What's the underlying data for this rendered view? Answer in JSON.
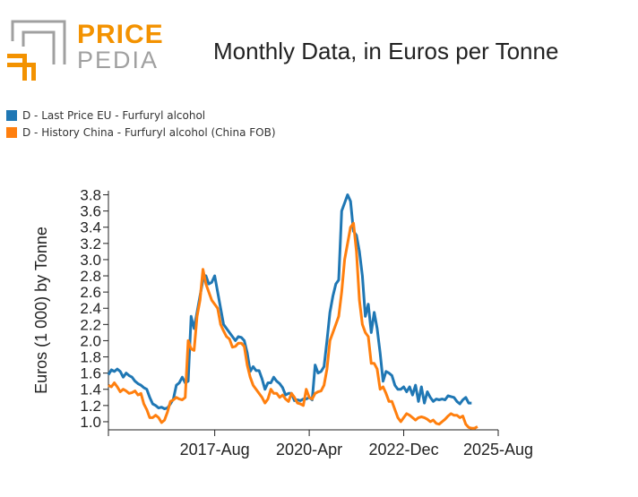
{
  "header": {
    "logo_line1": "PRICE",
    "logo_line2": "PEDIA",
    "title": "Monthly Data, in Euros per Tonne"
  },
  "colors": {
    "eu": "#1f77b4",
    "china": "#ff7f0e",
    "logo_orange": "#f39200",
    "logo_gray": "#a0a0a0"
  },
  "legend": [
    {
      "label": "D - Last Price EU - Furfuryl alcohol",
      "color": "#1f77b4"
    },
    {
      "label": "D - History China - Furfuryl alcohol (China FOB)",
      "color": "#ff7f0e"
    }
  ],
  "chart_data": {
    "type": "line",
    "ylabel": "Euros (1 000) by Tonne",
    "xlabel": "",
    "x_tick_labels": [
      "2017-Aug",
      "2020-Apr",
      "2022-Dec",
      "2025-Aug"
    ],
    "x_ticks": [
      "2014-Aug",
      "2017-Aug",
      "2020-Apr",
      "2022-Dec",
      "2025-Aug"
    ],
    "y_ticks": [
      1.0,
      1.2,
      1.4,
      1.6,
      1.8,
      2.0,
      2.2,
      2.4,
      2.6,
      2.8,
      3.0,
      3.2,
      3.4,
      3.6,
      3.8
    ],
    "ylim": [
      0.9,
      3.85
    ],
    "xlim": [
      "2014-Aug",
      "2025-Aug"
    ],
    "series": [
      {
        "name": "D - Last Price EU - Furfuryl alcohol",
        "color": "#1f77b4",
        "points": [
          [
            "2014-Aug",
            1.58
          ],
          [
            "2014-Sep",
            1.64
          ],
          [
            "2014-Oct",
            1.62
          ],
          [
            "2014-Nov",
            1.65
          ],
          [
            "2014-Dec",
            1.62
          ],
          [
            "2015-Jan",
            1.55
          ],
          [
            "2015-Feb",
            1.6
          ],
          [
            "2015-Mar",
            1.57
          ],
          [
            "2015-Apr",
            1.55
          ],
          [
            "2015-May",
            1.5
          ],
          [
            "2015-Jun",
            1.47
          ],
          [
            "2015-Jul",
            1.45
          ],
          [
            "2015-Aug",
            1.42
          ],
          [
            "2015-Sep",
            1.4
          ],
          [
            "2015-Oct",
            1.3
          ],
          [
            "2015-Nov",
            1.22
          ],
          [
            "2015-Dec",
            1.2
          ],
          [
            "2016-Jan",
            1.17
          ],
          [
            "2016-Feb",
            1.18
          ],
          [
            "2016-Mar",
            1.16
          ],
          [
            "2016-Apr",
            1.17
          ],
          [
            "2016-May",
            1.22
          ],
          [
            "2016-Jun",
            1.28
          ],
          [
            "2016-Jul",
            1.45
          ],
          [
            "2016-Aug",
            1.48
          ],
          [
            "2016-Sep",
            1.55
          ],
          [
            "2016-Oct",
            1.48
          ],
          [
            "2016-Nov",
            1.5
          ],
          [
            "2016-Dec",
            2.3
          ],
          [
            "2017-Jan",
            2.15
          ],
          [
            "2017-Feb",
            2.35
          ],
          [
            "2017-Mar",
            2.55
          ],
          [
            "2017-Apr",
            2.75
          ],
          [
            "2017-May",
            2.8
          ],
          [
            "2017-Jun",
            2.7
          ],
          [
            "2017-Jul",
            2.72
          ],
          [
            "2017-Aug",
            2.8
          ],
          [
            "2017-Sep",
            2.6
          ],
          [
            "2017-Oct",
            2.4
          ],
          [
            "2017-Nov",
            2.2
          ],
          [
            "2017-Dec",
            2.15
          ],
          [
            "2018-Jan",
            2.1
          ],
          [
            "2018-Feb",
            2.05
          ],
          [
            "2018-Mar",
            2.0
          ],
          [
            "2018-Apr",
            2.05
          ],
          [
            "2018-May",
            2.04
          ],
          [
            "2018-Jun",
            2.0
          ],
          [
            "2018-Jul",
            1.85
          ],
          [
            "2018-Aug",
            1.62
          ],
          [
            "2018-Sep",
            1.68
          ],
          [
            "2018-Oct",
            1.63
          ],
          [
            "2018-Nov",
            1.63
          ],
          [
            "2018-Dec",
            1.53
          ],
          [
            "2019-Jan",
            1.4
          ],
          [
            "2019-Feb",
            1.48
          ],
          [
            "2019-Mar",
            1.48
          ],
          [
            "2019-Apr",
            1.55
          ],
          [
            "2019-May",
            1.5
          ],
          [
            "2019-Jun",
            1.47
          ],
          [
            "2019-Jul",
            1.42
          ],
          [
            "2019-Aug",
            1.33
          ],
          [
            "2019-Sep",
            1.35
          ],
          [
            "2019-Oct",
            1.35
          ],
          [
            "2019-Nov",
            1.26
          ],
          [
            "2019-Dec",
            1.27
          ],
          [
            "2020-Jan",
            1.26
          ],
          [
            "2020-Feb",
            1.28
          ],
          [
            "2020-Mar",
            1.28
          ],
          [
            "2020-Apr",
            1.3
          ],
          [
            "2020-May",
            1.27
          ],
          [
            "2020-Jun",
            1.7
          ],
          [
            "2020-Jul",
            1.6
          ],
          [
            "2020-Aug",
            1.62
          ],
          [
            "2020-Sep",
            1.68
          ],
          [
            "2020-Oct",
            2.0
          ],
          [
            "2020-Nov",
            2.35
          ],
          [
            "2020-Dec",
            2.55
          ],
          [
            "2021-Jan",
            2.7
          ],
          [
            "2021-Feb",
            2.75
          ],
          [
            "2021-Mar",
            3.6
          ],
          [
            "2021-Apr",
            3.7
          ],
          [
            "2021-May",
            3.8
          ],
          [
            "2021-Jun",
            3.72
          ],
          [
            "2021-Jul",
            3.35
          ],
          [
            "2021-Aug",
            3.3
          ],
          [
            "2021-Sep",
            3.1
          ],
          [
            "2021-Oct",
            2.8
          ],
          [
            "2021-Nov",
            2.3
          ],
          [
            "2021-Dec",
            2.45
          ],
          [
            "2022-Jan",
            2.1
          ],
          [
            "2022-Feb",
            2.35
          ],
          [
            "2022-Mar",
            2.15
          ],
          [
            "2022-Apr",
            1.85
          ],
          [
            "2022-May",
            1.5
          ],
          [
            "2022-Jun",
            1.62
          ],
          [
            "2022-Jul",
            1.6
          ],
          [
            "2022-Aug",
            1.57
          ],
          [
            "2022-Sep",
            1.45
          ],
          [
            "2022-Oct",
            1.4
          ],
          [
            "2022-Nov",
            1.4
          ],
          [
            "2022-Dec",
            1.43
          ],
          [
            "2023-Jan",
            1.37
          ],
          [
            "2023-Feb",
            1.43
          ],
          [
            "2023-Mar",
            1.33
          ],
          [
            "2023-Apr",
            1.45
          ],
          [
            "2023-May",
            1.25
          ],
          [
            "2023-Jun",
            1.43
          ],
          [
            "2023-Jul",
            1.23
          ],
          [
            "2023-Aug",
            1.37
          ],
          [
            "2023-Sep",
            1.3
          ],
          [
            "2023-Oct",
            1.25
          ],
          [
            "2023-Nov",
            1.28
          ],
          [
            "2023-Dec",
            1.27
          ],
          [
            "2024-Jan",
            1.28
          ],
          [
            "2024-Feb",
            1.27
          ],
          [
            "2024-Mar",
            1.32
          ],
          [
            "2024-Apr",
            1.31
          ],
          [
            "2024-May",
            1.3
          ],
          [
            "2024-Jun",
            1.25
          ],
          [
            "2024-Jul",
            1.22
          ],
          [
            "2024-Aug",
            1.27
          ],
          [
            "2024-Sep",
            1.3
          ],
          [
            "2024-Oct",
            1.23
          ],
          [
            "2024-Nov",
            1.23
          ]
        ]
      },
      {
        "name": "D - History China - Furfuryl alcohol (China FOB)",
        "color": "#ff7f0e",
        "points": [
          [
            "2014-Aug",
            1.45
          ],
          [
            "2014-Sep",
            1.43
          ],
          [
            "2014-Oct",
            1.48
          ],
          [
            "2014-Nov",
            1.43
          ],
          [
            "2014-Dec",
            1.37
          ],
          [
            "2015-Jan",
            1.4
          ],
          [
            "2015-Feb",
            1.38
          ],
          [
            "2015-Mar",
            1.35
          ],
          [
            "2015-Apr",
            1.36
          ],
          [
            "2015-May",
            1.38
          ],
          [
            "2015-Jun",
            1.33
          ],
          [
            "2015-Jul",
            1.35
          ],
          [
            "2015-Aug",
            1.22
          ],
          [
            "2015-Sep",
            1.15
          ],
          [
            "2015-Oct",
            1.05
          ],
          [
            "2015-Nov",
            1.05
          ],
          [
            "2015-Dec",
            1.08
          ],
          [
            "2016-Jan",
            1.05
          ],
          [
            "2016-Feb",
            0.99
          ],
          [
            "2016-Mar",
            1.02
          ],
          [
            "2016-Apr",
            1.12
          ],
          [
            "2016-May",
            1.25
          ],
          [
            "2016-Jun",
            1.27
          ],
          [
            "2016-Jul",
            1.3
          ],
          [
            "2016-Aug",
            1.28
          ],
          [
            "2016-Sep",
            1.27
          ],
          [
            "2016-Oct",
            1.3
          ],
          [
            "2016-Nov",
            2.0
          ],
          [
            "2016-Dec",
            1.9
          ],
          [
            "2017-Jan",
            1.88
          ],
          [
            "2017-Feb",
            2.3
          ],
          [
            "2017-Mar",
            2.5
          ],
          [
            "2017-Apr",
            2.88
          ],
          [
            "2017-May",
            2.7
          ],
          [
            "2017-Jun",
            2.6
          ],
          [
            "2017-Jul",
            2.5
          ],
          [
            "2017-Aug",
            2.45
          ],
          [
            "2017-Sep",
            2.4
          ],
          [
            "2017-Oct",
            2.2
          ],
          [
            "2017-Nov",
            2.12
          ],
          [
            "2017-Dec",
            2.05
          ],
          [
            "2018-Jan",
            2.02
          ],
          [
            "2018-Feb",
            1.92
          ],
          [
            "2018-Mar",
            1.93
          ],
          [
            "2018-Apr",
            1.97
          ],
          [
            "2018-May",
            1.97
          ],
          [
            "2018-Jun",
            1.93
          ],
          [
            "2018-Jul",
            1.7
          ],
          [
            "2018-Aug",
            1.55
          ],
          [
            "2018-Sep",
            1.45
          ],
          [
            "2018-Oct",
            1.4
          ],
          [
            "2018-Nov",
            1.35
          ],
          [
            "2018-Dec",
            1.3
          ],
          [
            "2019-Jan",
            1.23
          ],
          [
            "2019-Feb",
            1.28
          ],
          [
            "2019-Mar",
            1.4
          ],
          [
            "2019-Apr",
            1.35
          ],
          [
            "2019-May",
            1.35
          ],
          [
            "2019-Jun",
            1.3
          ],
          [
            "2019-Jul",
            1.33
          ],
          [
            "2019-Aug",
            1.28
          ],
          [
            "2019-Sep",
            1.25
          ],
          [
            "2019-Oct",
            1.35
          ],
          [
            "2019-Nov",
            1.3
          ],
          [
            "2019-Dec",
            1.23
          ],
          [
            "2020-Jan",
            1.22
          ],
          [
            "2020-Feb",
            1.2
          ],
          [
            "2020-Mar",
            1.4
          ],
          [
            "2020-Apr",
            1.3
          ],
          [
            "2020-May",
            1.28
          ],
          [
            "2020-Jun",
            1.35
          ],
          [
            "2020-Jul",
            1.37
          ],
          [
            "2020-Aug",
            1.38
          ],
          [
            "2020-Sep",
            1.45
          ],
          [
            "2020-Oct",
            1.65
          ],
          [
            "2020-Nov",
            2.0
          ],
          [
            "2020-Dec",
            2.1
          ],
          [
            "2021-Jan",
            2.2
          ],
          [
            "2021-Feb",
            2.3
          ],
          [
            "2021-Mar",
            2.6
          ],
          [
            "2021-Apr",
            3.0
          ],
          [
            "2021-May",
            3.2
          ],
          [
            "2021-Jun",
            3.4
          ],
          [
            "2021-Jul",
            3.45
          ],
          [
            "2021-Aug",
            3.1
          ],
          [
            "2021-Sep",
            2.5
          ],
          [
            "2021-Oct",
            2.2
          ],
          [
            "2021-Nov",
            2.1
          ],
          [
            "2021-Dec",
            2.05
          ],
          [
            "2022-Jan",
            1.72
          ],
          [
            "2022-Feb",
            1.72
          ],
          [
            "2022-Mar",
            1.65
          ],
          [
            "2022-Apr",
            1.4
          ],
          [
            "2022-May",
            1.43
          ],
          [
            "2022-Jun",
            1.35
          ],
          [
            "2022-Jul",
            1.25
          ],
          [
            "2022-Aug",
            1.25
          ],
          [
            "2022-Sep",
            1.15
          ],
          [
            "2022-Oct",
            1.05
          ],
          [
            "2022-Nov",
            1.0
          ],
          [
            "2022-Dec",
            1.05
          ],
          [
            "2023-Jan",
            1.1
          ],
          [
            "2023-Feb",
            1.08
          ],
          [
            "2023-Mar",
            1.05
          ],
          [
            "2023-Apr",
            1.02
          ],
          [
            "2023-May",
            1.05
          ],
          [
            "2023-Jun",
            1.06
          ],
          [
            "2023-Jul",
            1.05
          ],
          [
            "2023-Aug",
            1.03
          ],
          [
            "2023-Sep",
            1.0
          ],
          [
            "2023-Oct",
            1.02
          ],
          [
            "2023-Nov",
            0.98
          ],
          [
            "2023-Dec",
            0.97
          ],
          [
            "2024-Jan",
            1.0
          ],
          [
            "2024-Feb",
            1.03
          ],
          [
            "2024-Mar",
            1.07
          ],
          [
            "2024-Apr",
            1.1
          ],
          [
            "2024-May",
            1.08
          ],
          [
            "2024-Jun",
            1.08
          ],
          [
            "2024-Jul",
            1.05
          ],
          [
            "2024-Aug",
            1.07
          ],
          [
            "2024-Sep",
            0.97
          ],
          [
            "2024-Oct",
            0.93
          ],
          [
            "2024-Nov",
            0.92
          ],
          [
            "2024-Dec",
            0.92
          ],
          [
            "2025-Jan",
            0.94
          ]
        ]
      }
    ]
  }
}
